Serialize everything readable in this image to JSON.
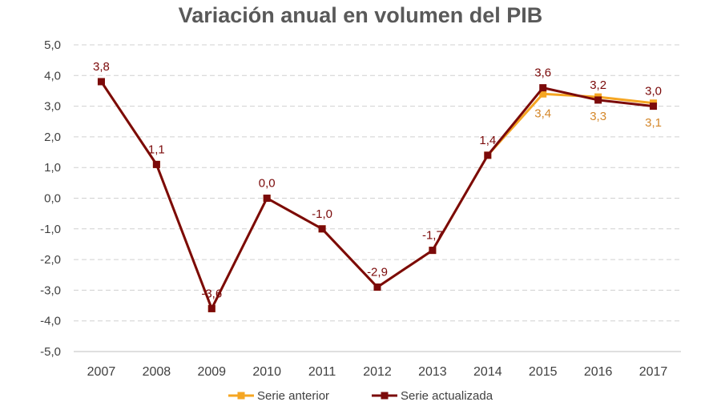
{
  "chart_data": {
    "type": "line",
    "title": "Variación anual en volumen del PIB",
    "xlabel": "",
    "ylabel": "",
    "ylim": [
      -5,
      5
    ],
    "yticks": [
      "5,0",
      "4,0",
      "3,0",
      "2,0",
      "1,0",
      "0,0",
      "-1,0",
      "-2,0",
      "-3,0",
      "-4,0",
      "-5,0"
    ],
    "ytick_values": [
      5,
      4,
      3,
      2,
      1,
      0,
      -1,
      -2,
      -3,
      -4,
      -5
    ],
    "categories": [
      "2007",
      "2008",
      "2009",
      "2010",
      "2011",
      "2012",
      "2013",
      "2014",
      "2015",
      "2016",
      "2017"
    ],
    "grid": true,
    "legend_position": "bottom",
    "series": [
      {
        "name": "Serie anterior",
        "color": "#F5A623",
        "values": [
          3.8,
          1.1,
          -3.6,
          0.0,
          -1.0,
          -2.9,
          -1.7,
          1.4,
          3.4,
          3.3,
          3.1
        ],
        "labels": [
          "",
          "",
          "",
          "",
          "",
          "",
          "",
          "",
          "3,4",
          "3,3",
          "3,1"
        ]
      },
      {
        "name": "Serie actualizada",
        "color": "#7B0A0A",
        "values": [
          3.8,
          1.1,
          -3.6,
          0.0,
          -1.0,
          -2.9,
          -1.7,
          1.4,
          3.6,
          3.2,
          3.0
        ],
        "labels": [
          "3,8",
          "1,1",
          "-3,6",
          "0,0",
          "-1,0",
          "-2,9",
          "-1,7",
          "1,4",
          "3,6",
          "3,2",
          "3,0"
        ]
      }
    ]
  }
}
